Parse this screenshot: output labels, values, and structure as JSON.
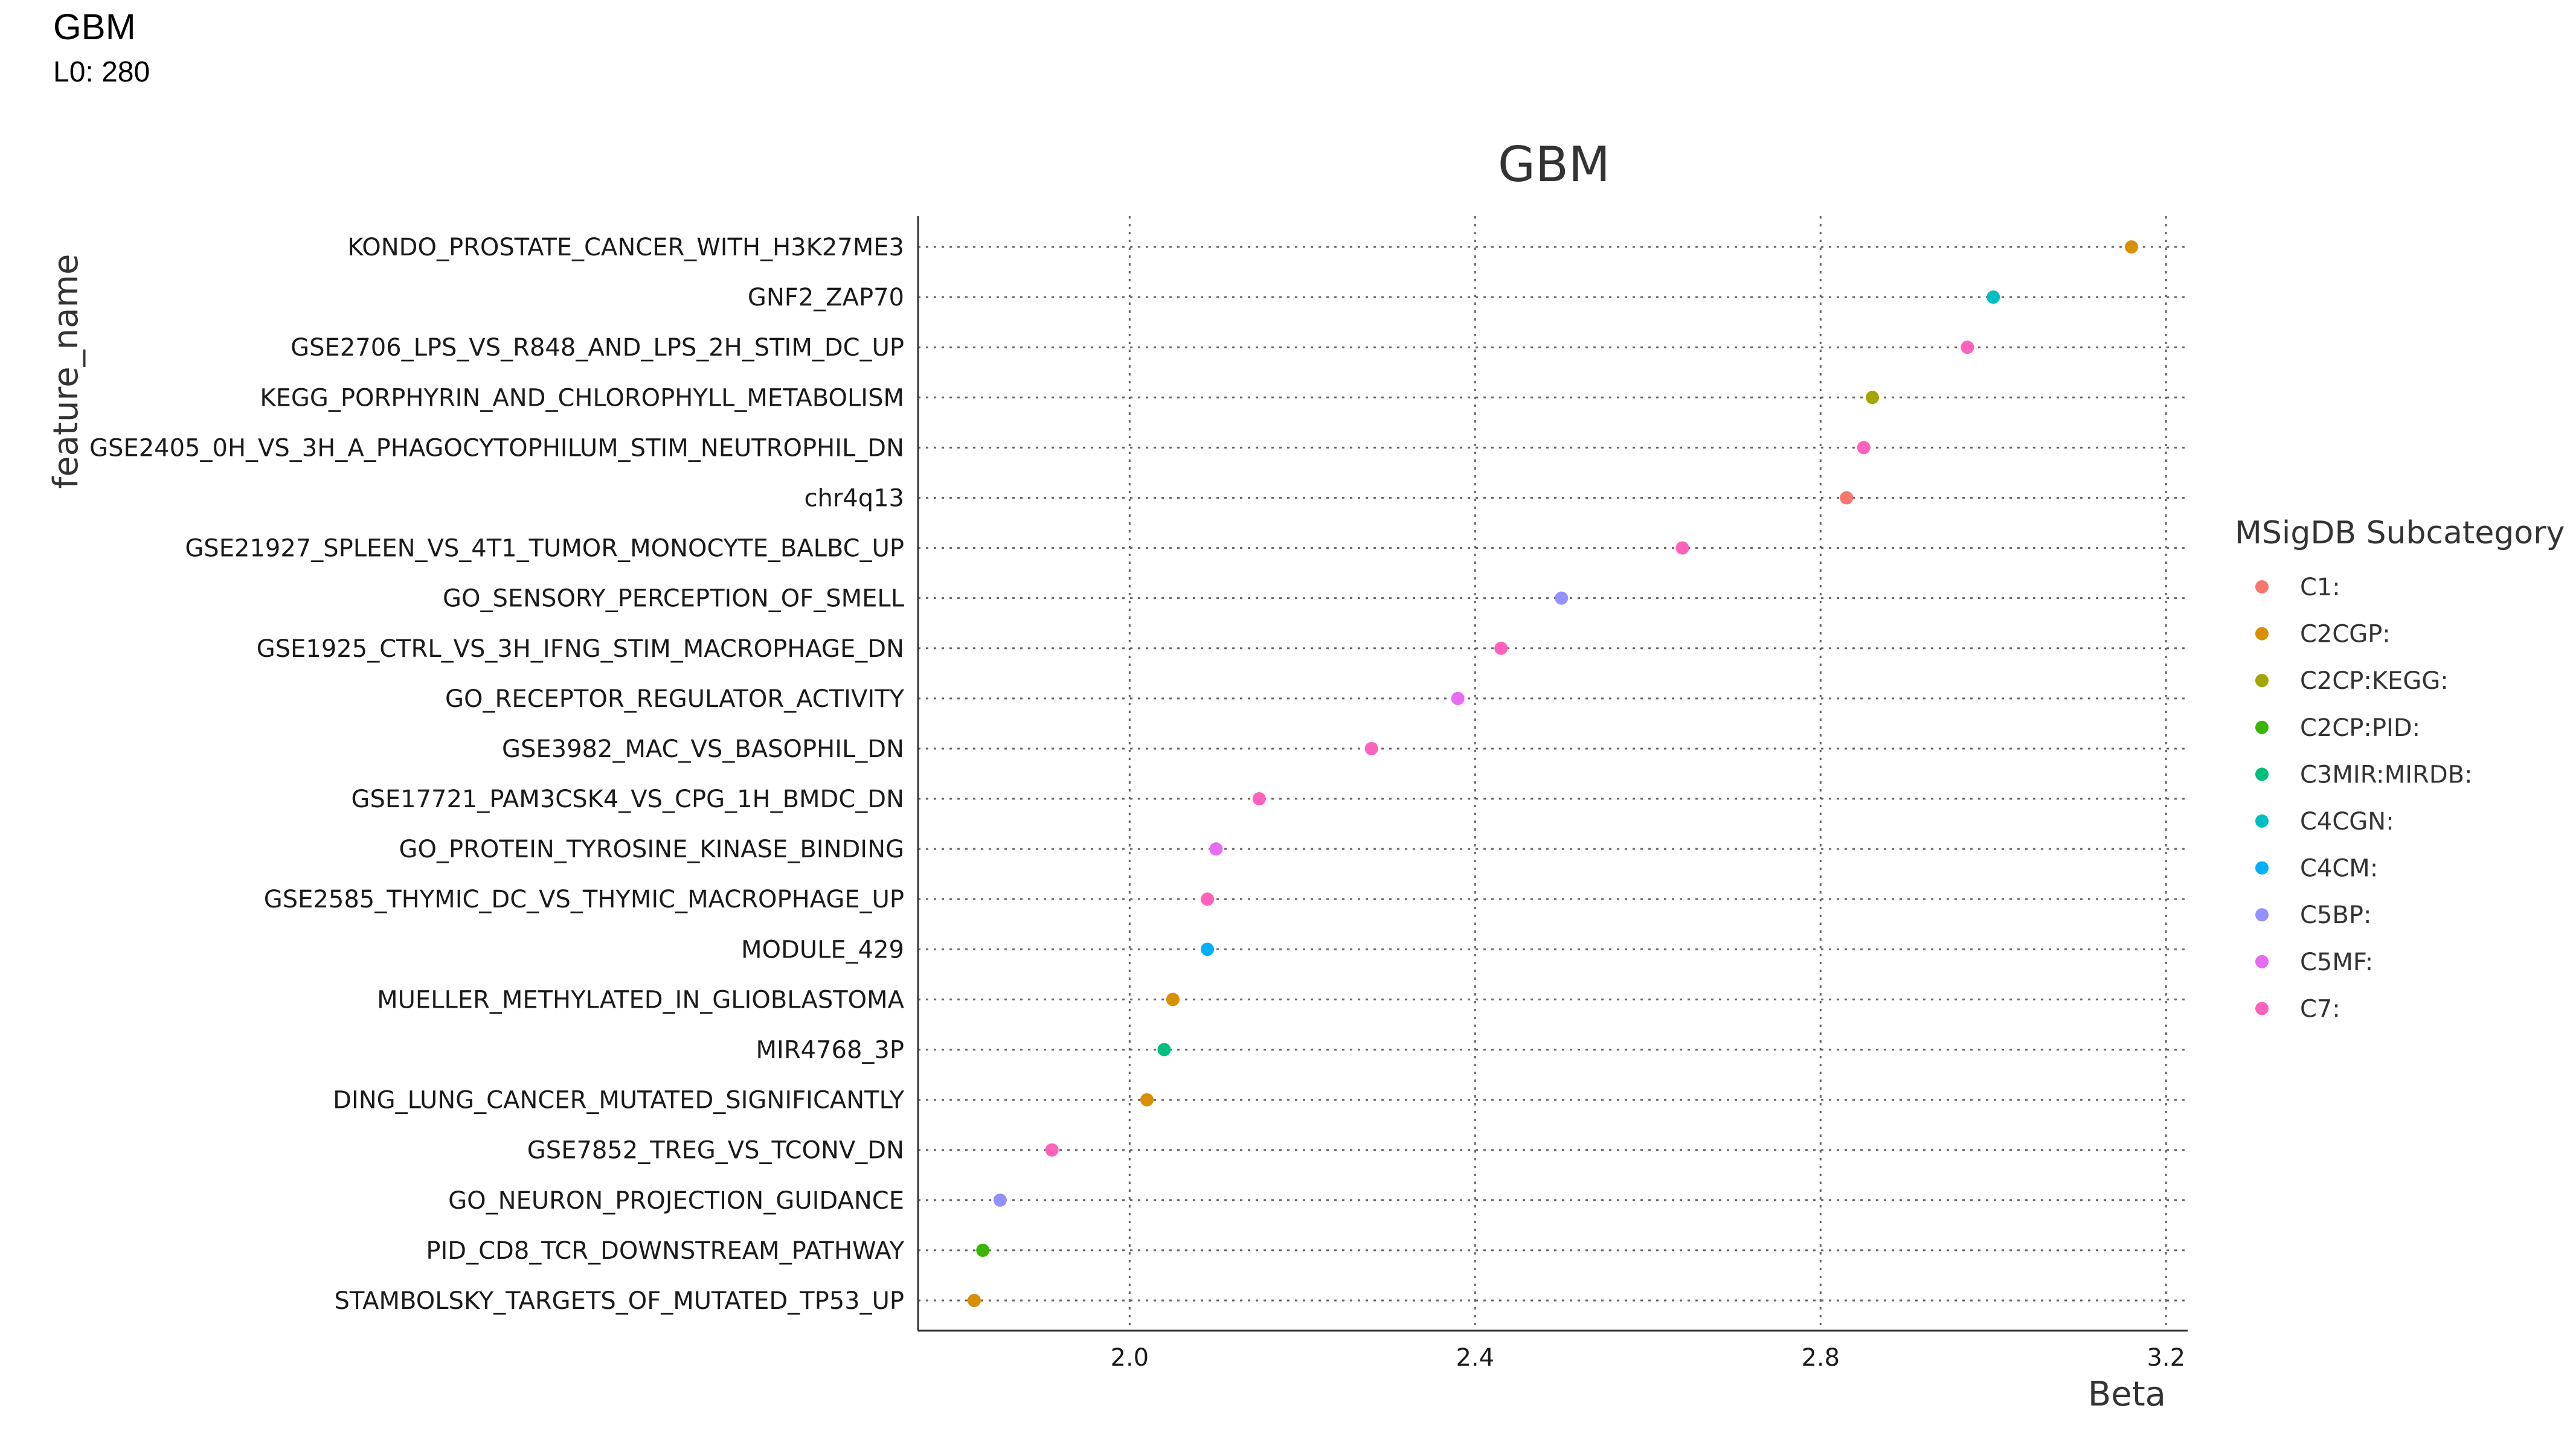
{
  "page": {
    "title": "GBM",
    "subtitle": "L0: 280"
  },
  "chart_data": {
    "type": "scatter",
    "title": "GBM",
    "xlabel": "Beta",
    "ylabel": "feature_name",
    "xlim": [
      1.755,
      3.225
    ],
    "xticks": [
      2.0,
      2.4,
      2.8,
      3.2
    ],
    "grid": true,
    "legend": {
      "title": "MSigDB Subcategory",
      "position": "right"
    },
    "subcategories": [
      {
        "name": "C1:",
        "color": "#F8766D"
      },
      {
        "name": "C2CGP:",
        "color": "#D89000"
      },
      {
        "name": "C2CP:KEGG:",
        "color": "#A3A500"
      },
      {
        "name": "C2CP:PID:",
        "color": "#39B600"
      },
      {
        "name": "C3MIR:MIRDB:",
        "color": "#00BF7D"
      },
      {
        "name": "C4CGN:",
        "color": "#00BFC4"
      },
      {
        "name": "C4CM:",
        "color": "#00B0F6"
      },
      {
        "name": "C5BP:",
        "color": "#9590FF"
      },
      {
        "name": "C5MF:",
        "color": "#E76BF3"
      },
      {
        "name": "C7:",
        "color": "#FF62BC"
      }
    ],
    "points": [
      {
        "feature": "KONDO_PROSTATE_CANCER_WITH_H3K27ME3",
        "beta": 3.16,
        "subcategory": "C2CGP:"
      },
      {
        "feature": "GNF2_ZAP70",
        "beta": 3.0,
        "subcategory": "C4CGN:"
      },
      {
        "feature": "GSE2706_LPS_VS_R848_AND_LPS_2H_STIM_DC_UP",
        "beta": 2.97,
        "subcategory": "C7:"
      },
      {
        "feature": "KEGG_PORPHYRIN_AND_CHLOROPHYLL_METABOLISM",
        "beta": 2.86,
        "subcategory": "C2CP:KEGG:"
      },
      {
        "feature": "GSE2405_0H_VS_3H_A_PHAGOCYTOPHILUM_STIM_NEUTROPHIL_DN",
        "beta": 2.85,
        "subcategory": "C7:"
      },
      {
        "feature": "chr4q13",
        "beta": 2.83,
        "subcategory": "C1:"
      },
      {
        "feature": "GSE21927_SPLEEN_VS_4T1_TUMOR_MONOCYTE_BALBC_UP",
        "beta": 2.64,
        "subcategory": "C7:"
      },
      {
        "feature": "GO_SENSORY_PERCEPTION_OF_SMELL",
        "beta": 2.5,
        "subcategory": "C5BP:"
      },
      {
        "feature": "GSE1925_CTRL_VS_3H_IFNG_STIM_MACROPHAGE_DN",
        "beta": 2.43,
        "subcategory": "C7:"
      },
      {
        "feature": "GO_RECEPTOR_REGULATOR_ACTIVITY",
        "beta": 2.38,
        "subcategory": "C5MF:"
      },
      {
        "feature": "GSE3982_MAC_VS_BASOPHIL_DN",
        "beta": 2.28,
        "subcategory": "C7:"
      },
      {
        "feature": "GSE17721_PAM3CSK4_VS_CPG_1H_BMDC_DN",
        "beta": 2.15,
        "subcategory": "C7:"
      },
      {
        "feature": "GO_PROTEIN_TYROSINE_KINASE_BINDING",
        "beta": 2.1,
        "subcategory": "C5MF:"
      },
      {
        "feature": "GSE2585_THYMIC_DC_VS_THYMIC_MACROPHAGE_UP",
        "beta": 2.09,
        "subcategory": "C7:"
      },
      {
        "feature": "MODULE_429",
        "beta": 2.09,
        "subcategory": "C4CM:"
      },
      {
        "feature": "MUELLER_METHYLATED_IN_GLIOBLASTOMA",
        "beta": 2.05,
        "subcategory": "C2CGP:"
      },
      {
        "feature": "MIR4768_3P",
        "beta": 2.04,
        "subcategory": "C3MIR:MIRDB:"
      },
      {
        "feature": "DING_LUNG_CANCER_MUTATED_SIGNIFICANTLY",
        "beta": 2.02,
        "subcategory": "C2CGP:"
      },
      {
        "feature": "GSE7852_TREG_VS_TCONV_DN",
        "beta": 1.91,
        "subcategory": "C7:"
      },
      {
        "feature": "GO_NEURON_PROJECTION_GUIDANCE",
        "beta": 1.85,
        "subcategory": "C5BP:"
      },
      {
        "feature": "PID_CD8_TCR_DOWNSTREAM_PATHWAY",
        "beta": 1.83,
        "subcategory": "C2CP:PID:"
      },
      {
        "feature": "STAMBOLSKY_TARGETS_OF_MUTATED_TP53_UP",
        "beta": 1.82,
        "subcategory": "C2CGP:"
      }
    ]
  }
}
